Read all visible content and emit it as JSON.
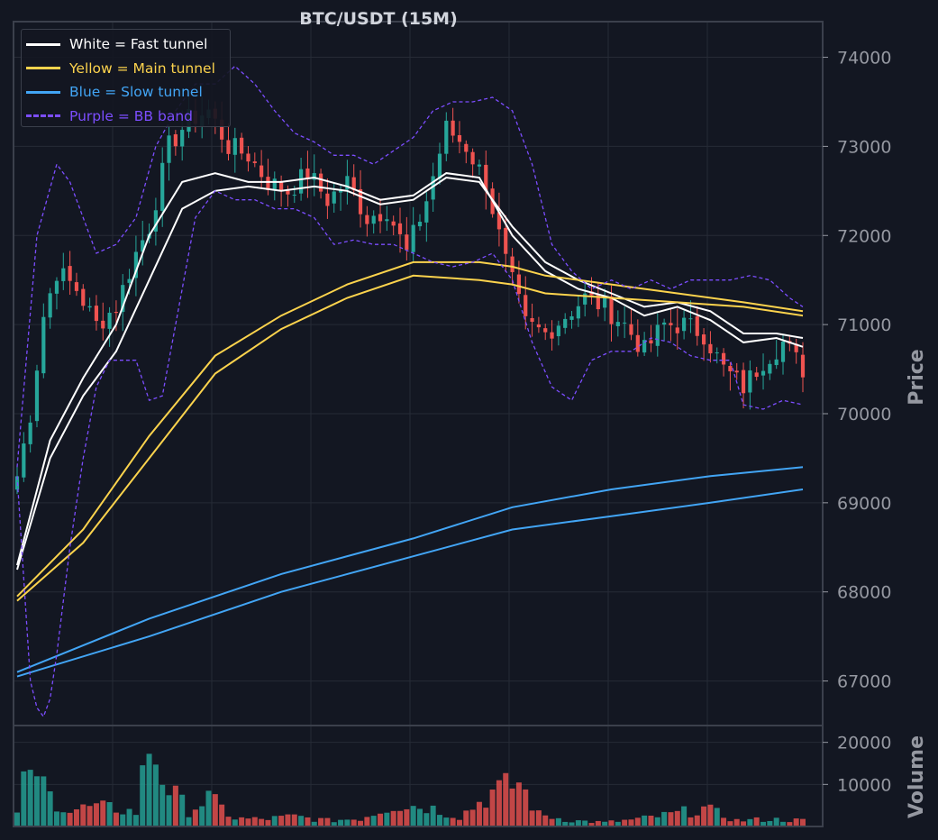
{
  "chart_data": {
    "type": "candlestick",
    "title": "BTC/USDT (15M)",
    "price_panel": {
      "ylabel": "Price",
      "ylim": [
        66500,
        74400
      ],
      "yticks": [
        67000,
        68000,
        69000,
        70000,
        71000,
        72000,
        73000,
        74000
      ],
      "candle_count": 120,
      "candle_colors": {
        "up": "#26a69a",
        "down": "#ef5350"
      },
      "candles_sampled": [
        {
          "i": 0,
          "close": 69300
        },
        {
          "i": 2,
          "close": 70000
        },
        {
          "i": 4,
          "close": 71100
        },
        {
          "i": 6,
          "close": 71600
        },
        {
          "i": 9,
          "close": 71400
        },
        {
          "i": 12,
          "close": 71000
        },
        {
          "i": 15,
          "close": 71200
        },
        {
          "i": 18,
          "close": 71800
        },
        {
          "i": 20,
          "close": 72100
        },
        {
          "i": 23,
          "close": 73000
        },
        {
          "i": 26,
          "close": 73300
        },
        {
          "i": 29,
          "close": 73400
        },
        {
          "i": 32,
          "close": 73000
        },
        {
          "i": 35,
          "close": 72900
        },
        {
          "i": 38,
          "close": 72600
        },
        {
          "i": 41,
          "close": 72500
        },
        {
          "i": 44,
          "close": 72700
        },
        {
          "i": 47,
          "close": 72400
        },
        {
          "i": 50,
          "close": 72600
        },
        {
          "i": 53,
          "close": 72200
        },
        {
          "i": 56,
          "close": 72300
        },
        {
          "i": 59,
          "close": 71800
        },
        {
          "i": 62,
          "close": 72400
        },
        {
          "i": 65,
          "close": 73200
        },
        {
          "i": 68,
          "close": 73000
        },
        {
          "i": 71,
          "close": 72600
        },
        {
          "i": 74,
          "close": 71700
        },
        {
          "i": 77,
          "close": 71000
        },
        {
          "i": 80,
          "close": 70900
        },
        {
          "i": 83,
          "close": 71100
        },
        {
          "i": 86,
          "close": 71300
        },
        {
          "i": 89,
          "close": 71200
        },
        {
          "i": 92,
          "close": 71000
        },
        {
          "i": 95,
          "close": 70700
        },
        {
          "i": 98,
          "close": 71000
        },
        {
          "i": 101,
          "close": 71000
        },
        {
          "i": 104,
          "close": 70900
        },
        {
          "i": 107,
          "close": 70500
        },
        {
          "i": 110,
          "close": 70300
        },
        {
          "i": 113,
          "close": 70600
        },
        {
          "i": 116,
          "close": 70800
        },
        {
          "i": 119,
          "close": 70500
        }
      ]
    },
    "volume_panel": {
      "ylabel": "Volume",
      "ylim": [
        0,
        24000
      ],
      "yticks": [
        10000,
        20000
      ],
      "bars_sampled": [
        {
          "i": 0,
          "v": 3000
        },
        {
          "i": 2,
          "v": 17000
        },
        {
          "i": 3,
          "v": 9500
        },
        {
          "i": 4,
          "v": 11000
        },
        {
          "i": 5,
          "v": 7500
        },
        {
          "i": 8,
          "v": 4000
        },
        {
          "i": 11,
          "v": 4800
        },
        {
          "i": 15,
          "v": 4500
        },
        {
          "i": 18,
          "v": 3500
        },
        {
          "i": 20,
          "v": 21000
        },
        {
          "i": 23,
          "v": 9300
        },
        {
          "i": 26,
          "v": 4000
        },
        {
          "i": 29,
          "v": 7000
        },
        {
          "i": 33,
          "v": 2000
        },
        {
          "i": 37,
          "v": 1800
        },
        {
          "i": 42,
          "v": 2500
        },
        {
          "i": 47,
          "v": 1500
        },
        {
          "i": 52,
          "v": 2000
        },
        {
          "i": 57,
          "v": 5500
        },
        {
          "i": 62,
          "v": 5000
        },
        {
          "i": 67,
          "v": 2500
        },
        {
          "i": 72,
          "v": 8500
        },
        {
          "i": 73,
          "v": 9000
        },
        {
          "i": 76,
          "v": 11000
        },
        {
          "i": 79,
          "v": 3000
        },
        {
          "i": 84,
          "v": 1500
        },
        {
          "i": 89,
          "v": 1000
        },
        {
          "i": 94,
          "v": 1800
        },
        {
          "i": 99,
          "v": 3000
        },
        {
          "i": 104,
          "v": 4500
        },
        {
          "i": 109,
          "v": 1500
        },
        {
          "i": 114,
          "v": 1800
        },
        {
          "i": 119,
          "v": 1500
        }
      ]
    },
    "series": [
      {
        "name": "White = Fast tunnel",
        "color": "#ffffff",
        "style": "solid",
        "lines": [
          {
            "x": [
              0,
              5,
              10,
              15,
              20,
              25,
              30,
              35,
              40,
              45,
              50,
              55,
              60,
              65,
              70,
              75,
              80,
              85,
              90,
              95,
              100,
              105,
              110,
              115,
              119
            ],
            "y": [
              68300,
              69700,
              70400,
              71000,
              72000,
              72600,
              72700,
              72600,
              72600,
              72650,
              72550,
              72400,
              72450,
              72700,
              72650,
              72000,
              71600,
              71400,
              71300,
              71100,
              71200,
              71050,
              70800,
              70850,
              70750
            ]
          },
          {
            "x": [
              0,
              5,
              10,
              15,
              20,
              25,
              30,
              35,
              40,
              45,
              50,
              55,
              60,
              65,
              70,
              75,
              80,
              85,
              90,
              95,
              100,
              105,
              110,
              115,
              119
            ],
            "y": [
              68250,
              69500,
              70200,
              70700,
              71500,
              72300,
              72500,
              72550,
              72500,
              72550,
              72500,
              72350,
              72400,
              72650,
              72600,
              72100,
              71700,
              71500,
              71350,
              71200,
              71250,
              71150,
              70900,
              70900,
              70850
            ]
          }
        ]
      },
      {
        "name": "Yellow = Main tunnel",
        "color": "#fcd34d",
        "style": "solid",
        "lines": [
          {
            "x": [
              0,
              10,
              20,
              30,
              40,
              50,
              60,
              70,
              75,
              80,
              90,
              100,
              110,
              119
            ],
            "y": [
              67950,
              68700,
              69750,
              70650,
              71100,
              71450,
              71700,
              71700,
              71650,
              71550,
              71450,
              71350,
              71250,
              71150
            ]
          },
          {
            "x": [
              0,
              10,
              20,
              30,
              40,
              50,
              60,
              70,
              75,
              80,
              90,
              100,
              110,
              119
            ],
            "y": [
              67900,
              68550,
              69500,
              70450,
              70950,
              71300,
              71550,
              71500,
              71450,
              71350,
              71300,
              71250,
              71200,
              71100
            ]
          }
        ]
      },
      {
        "name": "Blue = Slow tunnel",
        "color": "#42a5f5",
        "style": "solid",
        "lines": [
          {
            "x": [
              0,
              20,
              40,
              60,
              75,
              90,
              105,
              119
            ],
            "y": [
              67100,
              67700,
              68200,
              68600,
              68950,
              69150,
              69300,
              69400
            ]
          },
          {
            "x": [
              0,
              20,
              40,
              60,
              75,
              90,
              105,
              119
            ],
            "y": [
              67050,
              67500,
              68000,
              68400,
              68700,
              68850,
              69000,
              69150
            ]
          }
        ]
      },
      {
        "name": "Purple = BB band",
        "color": "#7c4dff",
        "style": "dashed",
        "lines": [
          {
            "x": [
              0,
              3,
              6,
              8,
              10,
              12,
              15,
              18,
              21,
              24,
              27,
              30,
              33,
              36,
              39,
              42,
              45,
              48,
              51,
              54,
              57,
              60,
              63,
              66,
              69,
              72,
              75,
              78,
              81,
              84,
              87,
              90,
              93,
              96,
              99,
              102,
              105,
              108,
              111,
              114,
              117,
              119
            ],
            "y": [
              69400,
              72000,
              72800,
              72600,
              72200,
              71800,
              71900,
              72200,
              73000,
              73400,
              73700,
              73700,
              73900,
              73700,
              73400,
              73150,
              73050,
              72900,
              72900,
              72800,
              72950,
              73100,
              73400,
              73500,
              73500,
              73550,
              73400,
              72800,
              71900,
              71600,
              71400,
              71500,
              71400,
              71500,
              71400,
              71500,
              71500,
              71500,
              71550,
              71500,
              71300,
              71200
            ]
          },
          {
            "x": [
              0,
              2,
              3,
              4,
              5,
              6,
              8,
              10,
              12,
              14,
              16,
              18,
              20,
              22,
              24,
              27,
              30,
              33,
              36,
              39,
              42,
              45,
              48,
              51,
              54,
              57,
              60,
              63,
              66,
              69,
              72,
              75,
              78,
              81,
              84,
              87,
              90,
              93,
              96,
              99,
              102,
              105,
              108,
              110,
              113,
              116,
              119
            ],
            "y": [
              69300,
              67000,
              66700,
              66600,
              66800,
              67300,
              68500,
              69500,
              70300,
              70600,
              70600,
              70600,
              70150,
              70200,
              71000,
              72200,
              72500,
              72400,
              72400,
              72300,
              72300,
              72200,
              71900,
              71950,
              71900,
              71900,
              71800,
              71700,
              71650,
              71700,
              71800,
              71500,
              70800,
              70300,
              70150,
              70600,
              70700,
              70700,
              70850,
              70800,
              70650,
              70600,
              70600,
              70100,
              70050,
              70150,
              70100
            ]
          }
        ]
      }
    ],
    "grid": true,
    "legend_position": "top-left",
    "colors": {
      "background": "#131722",
      "grid": "#262b36",
      "axis_text": "#9598a1",
      "spine": "#3b404c"
    }
  }
}
